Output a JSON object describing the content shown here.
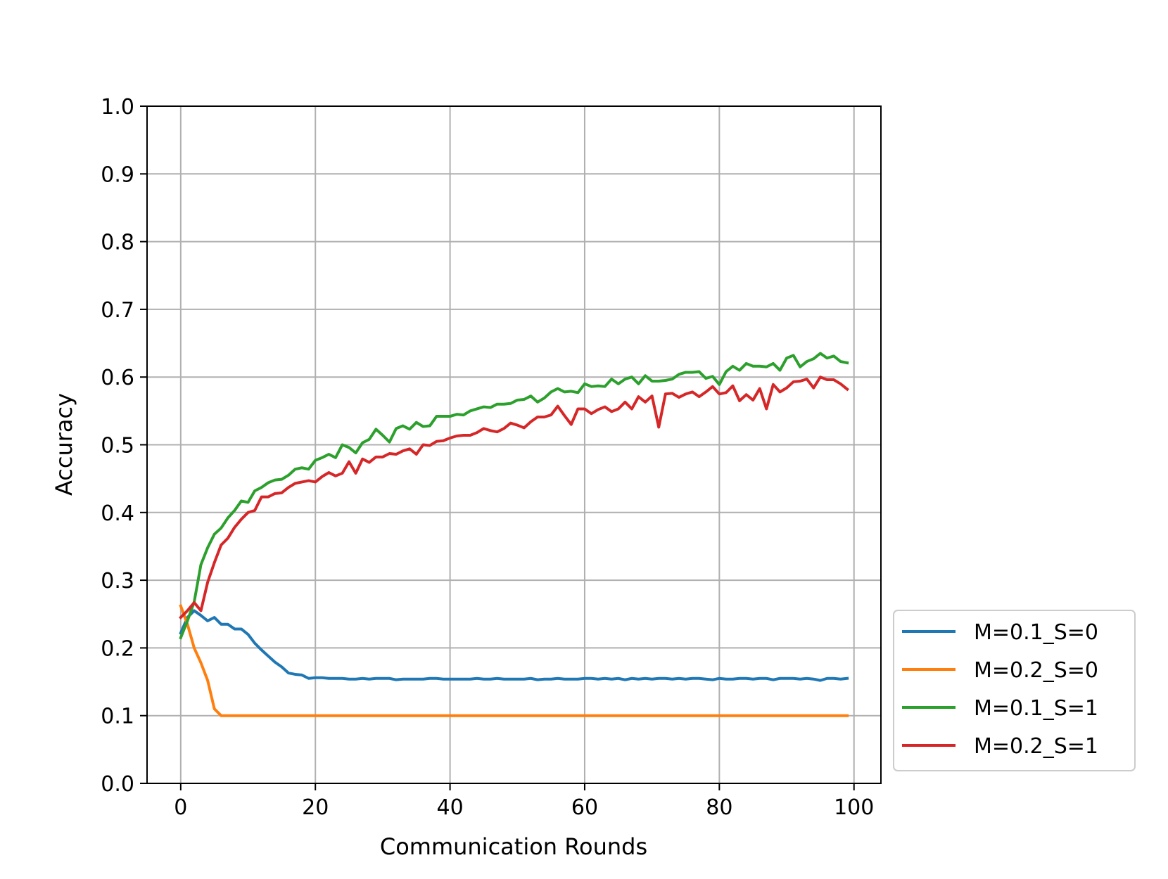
{
  "chart_data": {
    "type": "line",
    "title": "",
    "xlabel": "Communication Rounds",
    "ylabel": "Accuracy",
    "xlim": [
      -5,
      104
    ],
    "ylim": [
      0.0,
      1.0
    ],
    "xticks": [
      0,
      20,
      40,
      60,
      80,
      100
    ],
    "yticks": [
      0.0,
      0.1,
      0.2,
      0.3,
      0.4,
      0.5,
      0.6,
      0.7,
      0.8,
      0.9,
      1.0
    ],
    "xtick_labels": [
      "0",
      "20",
      "40",
      "60",
      "80",
      "100"
    ],
    "ytick_labels": [
      "0.0",
      "0.1",
      "0.2",
      "0.3",
      "0.4",
      "0.5",
      "0.6",
      "0.7",
      "0.8",
      "0.9",
      "1.0"
    ],
    "grid": true,
    "legend_position": "lower-right, outside plot",
    "series": [
      {
        "name": "M=0.1_S=0",
        "color": "#1f77b4",
        "values": [
          0.222,
          0.245,
          0.255,
          0.248,
          0.24,
          0.245,
          0.235,
          0.235,
          0.228,
          0.228,
          0.22,
          0.207,
          0.197,
          0.188,
          0.179,
          0.172,
          0.163,
          0.161,
          0.16,
          0.155,
          0.156,
          0.156,
          0.155,
          0.155,
          0.155,
          0.154,
          0.154,
          0.155,
          0.154,
          0.155,
          0.155,
          0.155,
          0.153,
          0.154,
          0.154,
          0.154,
          0.154,
          0.155,
          0.155,
          0.154,
          0.154,
          0.154,
          0.154,
          0.154,
          0.155,
          0.154,
          0.154,
          0.155,
          0.154,
          0.154,
          0.154,
          0.154,
          0.155,
          0.153,
          0.154,
          0.154,
          0.155,
          0.154,
          0.154,
          0.154,
          0.155,
          0.155,
          0.154,
          0.155,
          0.154,
          0.155,
          0.153,
          0.155,
          0.154,
          0.155,
          0.154,
          0.155,
          0.155,
          0.154,
          0.155,
          0.154,
          0.155,
          0.155,
          0.154,
          0.153,
          0.155,
          0.154,
          0.154,
          0.155,
          0.155,
          0.154,
          0.155,
          0.155,
          0.153,
          0.155,
          0.155,
          0.155,
          0.154,
          0.155,
          0.154,
          0.152,
          0.155,
          0.155,
          0.154,
          0.155
        ]
      },
      {
        "name": "M=0.2_S=0",
        "color": "#ff7f0e",
        "values": [
          0.262,
          0.235,
          0.2,
          0.178,
          0.152,
          0.11,
          0.1,
          0.1,
          0.1,
          0.1,
          0.1,
          0.1,
          0.1,
          0.1,
          0.1,
          0.1,
          0.1,
          0.1,
          0.1,
          0.1,
          0.1,
          0.1,
          0.1,
          0.1,
          0.1,
          0.1,
          0.1,
          0.1,
          0.1,
          0.1,
          0.1,
          0.1,
          0.1,
          0.1,
          0.1,
          0.1,
          0.1,
          0.1,
          0.1,
          0.1,
          0.1,
          0.1,
          0.1,
          0.1,
          0.1,
          0.1,
          0.1,
          0.1,
          0.1,
          0.1,
          0.1,
          0.1,
          0.1,
          0.1,
          0.1,
          0.1,
          0.1,
          0.1,
          0.1,
          0.1,
          0.1,
          0.1,
          0.1,
          0.1,
          0.1,
          0.1,
          0.1,
          0.1,
          0.1,
          0.1,
          0.1,
          0.1,
          0.1,
          0.1,
          0.1,
          0.1,
          0.1,
          0.1,
          0.1,
          0.1,
          0.1,
          0.1,
          0.1,
          0.1,
          0.1,
          0.1,
          0.1,
          0.1,
          0.1,
          0.1,
          0.1,
          0.1,
          0.1,
          0.1,
          0.1,
          0.1,
          0.1,
          0.1,
          0.1,
          0.1
        ]
      },
      {
        "name": "M=0.1_S=1",
        "color": "#2ca02c",
        "values": [
          0.215,
          0.24,
          0.268,
          0.323,
          0.348,
          0.368,
          0.377,
          0.392,
          0.403,
          0.417,
          0.415,
          0.432,
          0.437,
          0.444,
          0.448,
          0.449,
          0.455,
          0.464,
          0.466,
          0.464,
          0.477,
          0.481,
          0.486,
          0.481,
          0.5,
          0.496,
          0.488,
          0.503,
          0.508,
          0.523,
          0.514,
          0.504,
          0.524,
          0.528,
          0.523,
          0.533,
          0.527,
          0.528,
          0.542,
          0.542,
          0.542,
          0.545,
          0.544,
          0.55,
          0.553,
          0.556,
          0.555,
          0.56,
          0.56,
          0.561,
          0.566,
          0.567,
          0.572,
          0.563,
          0.569,
          0.578,
          0.583,
          0.578,
          0.579,
          0.577,
          0.59,
          0.586,
          0.587,
          0.586,
          0.597,
          0.59,
          0.597,
          0.6,
          0.59,
          0.602,
          0.594,
          0.594,
          0.595,
          0.597,
          0.604,
          0.607,
          0.607,
          0.608,
          0.598,
          0.601,
          0.589,
          0.608,
          0.616,
          0.61,
          0.62,
          0.616,
          0.616,
          0.615,
          0.62,
          0.61,
          0.628,
          0.632,
          0.615,
          0.623,
          0.627,
          0.635,
          0.628,
          0.631,
          0.623,
          0.621
        ]
      },
      {
        "name": "M=0.2_S=1",
        "color": "#d62728",
        "values": [
          0.245,
          0.255,
          0.267,
          0.255,
          0.297,
          0.326,
          0.352,
          0.362,
          0.378,
          0.39,
          0.4,
          0.403,
          0.423,
          0.423,
          0.428,
          0.429,
          0.437,
          0.443,
          0.445,
          0.447,
          0.445,
          0.453,
          0.459,
          0.454,
          0.458,
          0.475,
          0.458,
          0.479,
          0.474,
          0.482,
          0.482,
          0.487,
          0.486,
          0.491,
          0.494,
          0.486,
          0.5,
          0.499,
          0.505,
          0.506,
          0.51,
          0.513,
          0.514,
          0.514,
          0.518,
          0.524,
          0.521,
          0.519,
          0.524,
          0.532,
          0.529,
          0.525,
          0.534,
          0.541,
          0.541,
          0.544,
          0.557,
          0.543,
          0.53,
          0.553,
          0.553,
          0.546,
          0.552,
          0.556,
          0.549,
          0.553,
          0.563,
          0.553,
          0.571,
          0.563,
          0.572,
          0.526,
          0.575,
          0.576,
          0.57,
          0.575,
          0.578,
          0.571,
          0.578,
          0.586,
          0.575,
          0.577,
          0.587,
          0.565,
          0.574,
          0.566,
          0.583,
          0.553,
          0.589,
          0.578,
          0.584,
          0.593,
          0.594,
          0.597,
          0.584,
          0.6,
          0.596,
          0.596,
          0.59,
          0.582
        ]
      }
    ]
  }
}
